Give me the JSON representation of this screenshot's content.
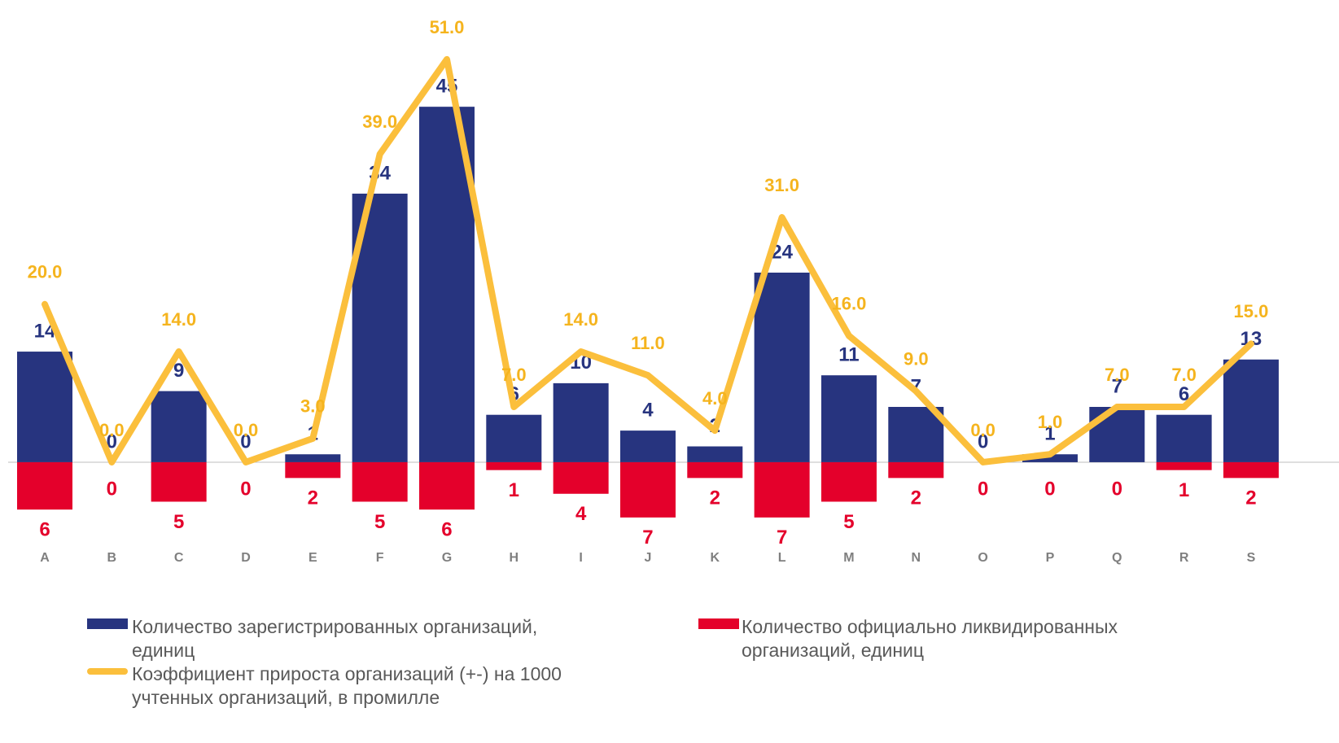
{
  "chart_data": {
    "type": "bar_line",
    "categories": [
      "A",
      "B",
      "C",
      "D",
      "E",
      "F",
      "G",
      "H",
      "I",
      "J",
      "K",
      "L",
      "M",
      "N",
      "O",
      "P",
      "Q",
      "R",
      "S"
    ],
    "ylim": [
      -10,
      58
    ],
    "series": [
      {
        "name": "Количество зарегистрированных организаций, единиц",
        "type": "bar",
        "color": "#27347f",
        "values": [
          14,
          0,
          9,
          0,
          1,
          34,
          45,
          6,
          10,
          4,
          2,
          24,
          11,
          7,
          0,
          1,
          7,
          6,
          13
        ]
      },
      {
        "name": "Количество официально ликвидированных организаций, единиц",
        "type": "bar",
        "color": "#e4002b",
        "values": [
          -6,
          0,
          -5,
          0,
          -2,
          -5,
          -6,
          -1,
          -4,
          -7,
          -2,
          -7,
          -5,
          -2,
          0,
          0,
          0,
          -1,
          -2
        ],
        "value_labels": [
          "6",
          "0",
          "5",
          "0",
          "2",
          "5",
          "6",
          "1",
          "4",
          "7",
          "2",
          "7",
          "5",
          "2",
          "0",
          "0",
          "0",
          "1",
          "2"
        ]
      },
      {
        "name": "Коэффициент прироста организаций (+-) на 1000 учтенных организаций, в промилле",
        "type": "line",
        "color": "#fbbf3c",
        "values": [
          20,
          0,
          14,
          0,
          3,
          39,
          51,
          7,
          14,
          11,
          4,
          31,
          16,
          9,
          0,
          1,
          7,
          7,
          15
        ],
        "value_labels": [
          "20.0",
          "0.0",
          "14.0",
          "0.0",
          "3.0",
          "39.0",
          "51.0",
          "7.0",
          "14.0",
          "11.0",
          "4.0",
          "31.0",
          "16.0",
          "9.0",
          "0.0",
          "1.0",
          "7.0",
          "7.0",
          "15.0"
        ]
      }
    ]
  }
}
